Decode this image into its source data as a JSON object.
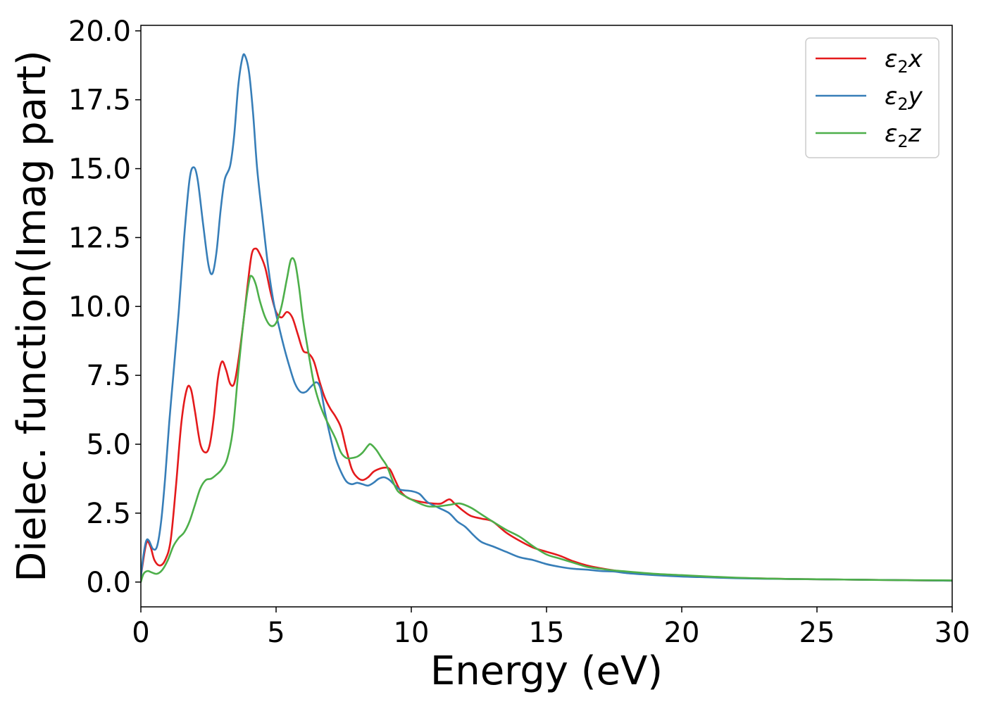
{
  "chart_data": {
    "type": "line",
    "xlabel": "Energy (eV)",
    "ylabel": "Dielec. function(Imag part)",
    "xlim": [
      0,
      30
    ],
    "ylim": [
      -0.9,
      20.2
    ],
    "xticks": [
      0,
      5,
      10,
      15,
      20,
      25,
      30
    ],
    "xtick_labels": [
      "0",
      "5",
      "10",
      "15",
      "20",
      "25",
      "30"
    ],
    "yticks": [
      0,
      2.5,
      5,
      7.5,
      10,
      12.5,
      15,
      17.5,
      20
    ],
    "ytick_labels": [
      "0.0",
      "2.5",
      "5.0",
      "7.5",
      "10.0",
      "12.5",
      "15.0",
      "17.5",
      "20.0"
    ],
    "grid": false,
    "legend_position": "top-right",
    "series": [
      {
        "name": "ε",
        "name_sub": "2",
        "name_suffix": "x",
        "color": "#e41a1c",
        "points": [
          [
            0,
            0.2
          ],
          [
            0.2,
            1.4
          ],
          [
            0.35,
            1.3
          ],
          [
            0.5,
            0.8
          ],
          [
            0.7,
            0.6
          ],
          [
            0.9,
            0.8
          ],
          [
            1.1,
            1.5
          ],
          [
            1.3,
            3.5
          ],
          [
            1.5,
            5.8
          ],
          [
            1.7,
            7.0
          ],
          [
            1.85,
            7.0
          ],
          [
            2.0,
            6.2
          ],
          [
            2.2,
            5.0
          ],
          [
            2.4,
            4.7
          ],
          [
            2.55,
            5.0
          ],
          [
            2.7,
            6.0
          ],
          [
            2.85,
            7.4
          ],
          [
            3.0,
            8.0
          ],
          [
            3.15,
            7.7
          ],
          [
            3.3,
            7.2
          ],
          [
            3.45,
            7.2
          ],
          [
            3.6,
            8.0
          ],
          [
            3.8,
            9.5
          ],
          [
            3.95,
            10.8
          ],
          [
            4.1,
            11.9
          ],
          [
            4.25,
            12.1
          ],
          [
            4.4,
            11.9
          ],
          [
            4.6,
            11.4
          ],
          [
            4.8,
            10.5
          ],
          [
            5.0,
            9.8
          ],
          [
            5.2,
            9.6
          ],
          [
            5.4,
            9.8
          ],
          [
            5.6,
            9.6
          ],
          [
            5.8,
            9.0
          ],
          [
            6.0,
            8.4
          ],
          [
            6.2,
            8.3
          ],
          [
            6.4,
            8.0
          ],
          [
            6.6,
            7.3
          ],
          [
            6.8,
            6.7
          ],
          [
            7.0,
            6.3
          ],
          [
            7.2,
            6.0
          ],
          [
            7.4,
            5.6
          ],
          [
            7.6,
            4.8
          ],
          [
            7.8,
            4.1
          ],
          [
            8.0,
            3.8
          ],
          [
            8.2,
            3.7
          ],
          [
            8.4,
            3.8
          ],
          [
            8.6,
            4.0
          ],
          [
            8.8,
            4.1
          ],
          [
            9.0,
            4.15
          ],
          [
            9.2,
            4.1
          ],
          [
            9.4,
            3.7
          ],
          [
            9.6,
            3.3
          ],
          [
            9.8,
            3.1
          ],
          [
            10.0,
            3.0
          ],
          [
            10.4,
            2.9
          ],
          [
            10.8,
            2.85
          ],
          [
            11.1,
            2.85
          ],
          [
            11.4,
            3.0
          ],
          [
            11.6,
            2.85
          ],
          [
            11.9,
            2.6
          ],
          [
            12.2,
            2.4
          ],
          [
            12.6,
            2.3
          ],
          [
            13.0,
            2.2
          ],
          [
            13.5,
            1.8
          ],
          [
            14.0,
            1.5
          ],
          [
            14.5,
            1.25
          ],
          [
            15.0,
            1.1
          ],
          [
            15.5,
            0.95
          ],
          [
            16.0,
            0.75
          ],
          [
            16.5,
            0.6
          ],
          [
            17.0,
            0.5
          ],
          [
            17.5,
            0.42
          ],
          [
            18.0,
            0.36
          ],
          [
            19.0,
            0.28
          ],
          [
            20.0,
            0.22
          ],
          [
            21.0,
            0.18
          ],
          [
            22.0,
            0.15
          ],
          [
            23.0,
            0.13
          ],
          [
            24.0,
            0.11
          ],
          [
            25.0,
            0.1
          ],
          [
            26.0,
            0.09
          ],
          [
            27.0,
            0.08
          ],
          [
            28.0,
            0.07
          ],
          [
            30.0,
            0.05
          ]
        ]
      },
      {
        "name": "ε",
        "name_sub": "2",
        "name_suffix": "y",
        "color": "#377eb8",
        "points": [
          [
            0,
            0.2
          ],
          [
            0.1,
            1.0
          ],
          [
            0.2,
            1.5
          ],
          [
            0.3,
            1.5
          ],
          [
            0.45,
            1.2
          ],
          [
            0.6,
            1.3
          ],
          [
            0.75,
            2.2
          ],
          [
            0.9,
            3.8
          ],
          [
            1.05,
            5.8
          ],
          [
            1.2,
            7.5
          ],
          [
            1.4,
            9.8
          ],
          [
            1.6,
            12.5
          ],
          [
            1.8,
            14.6
          ],
          [
            1.95,
            15.05
          ],
          [
            2.1,
            14.6
          ],
          [
            2.3,
            13.0
          ],
          [
            2.5,
            11.5
          ],
          [
            2.65,
            11.2
          ],
          [
            2.8,
            12.0
          ],
          [
            2.95,
            13.5
          ],
          [
            3.1,
            14.6
          ],
          [
            3.3,
            15.1
          ],
          [
            3.45,
            16.2
          ],
          [
            3.6,
            18.0
          ],
          [
            3.75,
            19.0
          ],
          [
            3.85,
            19.1
          ],
          [
            4.0,
            18.5
          ],
          [
            4.15,
            17.0
          ],
          [
            4.3,
            15.0
          ],
          [
            4.5,
            13.2
          ],
          [
            4.7,
            11.5
          ],
          [
            4.9,
            10.2
          ],
          [
            5.1,
            9.3
          ],
          [
            5.3,
            8.5
          ],
          [
            5.5,
            7.8
          ],
          [
            5.7,
            7.2
          ],
          [
            5.9,
            6.9
          ],
          [
            6.1,
            6.9
          ],
          [
            6.3,
            7.1
          ],
          [
            6.5,
            7.25
          ],
          [
            6.65,
            7.0
          ],
          [
            6.8,
            6.2
          ],
          [
            7.0,
            5.3
          ],
          [
            7.2,
            4.5
          ],
          [
            7.4,
            4.0
          ],
          [
            7.6,
            3.65
          ],
          [
            7.8,
            3.55
          ],
          [
            8.0,
            3.6
          ],
          [
            8.2,
            3.55
          ],
          [
            8.4,
            3.5
          ],
          [
            8.6,
            3.6
          ],
          [
            8.8,
            3.75
          ],
          [
            9.0,
            3.8
          ],
          [
            9.2,
            3.7
          ],
          [
            9.4,
            3.5
          ],
          [
            9.6,
            3.35
          ],
          [
            10.0,
            3.3
          ],
          [
            10.3,
            3.2
          ],
          [
            10.6,
            2.9
          ],
          [
            11.0,
            2.7
          ],
          [
            11.4,
            2.5
          ],
          [
            11.7,
            2.2
          ],
          [
            12.0,
            2.0
          ],
          [
            12.3,
            1.7
          ],
          [
            12.6,
            1.45
          ],
          [
            13.0,
            1.3
          ],
          [
            13.5,
            1.1
          ],
          [
            14.0,
            0.9
          ],
          [
            14.5,
            0.8
          ],
          [
            15.0,
            0.65
          ],
          [
            15.5,
            0.55
          ],
          [
            16.0,
            0.48
          ],
          [
            16.5,
            0.45
          ],
          [
            17.0,
            0.4
          ],
          [
            17.5,
            0.38
          ],
          [
            18.0,
            0.32
          ],
          [
            19.0,
            0.25
          ],
          [
            20.0,
            0.2
          ],
          [
            21.0,
            0.17
          ],
          [
            22.0,
            0.14
          ],
          [
            23.0,
            0.12
          ],
          [
            24.0,
            0.11
          ],
          [
            25.0,
            0.1
          ],
          [
            26.0,
            0.09
          ],
          [
            27.0,
            0.08
          ],
          [
            28.0,
            0.07
          ],
          [
            30.0,
            0.05
          ]
        ]
      },
      {
        "name": "ε",
        "name_sub": "2",
        "name_suffix": "z",
        "color": "#4daf4a",
        "points": [
          [
            0,
            0
          ],
          [
            0.1,
            0.3
          ],
          [
            0.25,
            0.4
          ],
          [
            0.4,
            0.35
          ],
          [
            0.6,
            0.3
          ],
          [
            0.8,
            0.45
          ],
          [
            1.0,
            0.8
          ],
          [
            1.2,
            1.3
          ],
          [
            1.4,
            1.6
          ],
          [
            1.6,
            1.8
          ],
          [
            1.8,
            2.2
          ],
          [
            2.0,
            2.8
          ],
          [
            2.2,
            3.4
          ],
          [
            2.4,
            3.7
          ],
          [
            2.6,
            3.75
          ],
          [
            2.8,
            3.9
          ],
          [
            3.0,
            4.1
          ],
          [
            3.2,
            4.5
          ],
          [
            3.4,
            5.5
          ],
          [
            3.6,
            7.6
          ],
          [
            3.8,
            9.5
          ],
          [
            4.0,
            10.9
          ],
          [
            4.1,
            11.1
          ],
          [
            4.25,
            10.8
          ],
          [
            4.4,
            10.2
          ],
          [
            4.6,
            9.6
          ],
          [
            4.8,
            9.3
          ],
          [
            5.0,
            9.4
          ],
          [
            5.2,
            10.0
          ],
          [
            5.4,
            11.0
          ],
          [
            5.55,
            11.7
          ],
          [
            5.7,
            11.6
          ],
          [
            5.85,
            10.7
          ],
          [
            6.0,
            9.5
          ],
          [
            6.2,
            8.3
          ],
          [
            6.4,
            7.2
          ],
          [
            6.6,
            6.5
          ],
          [
            6.8,
            6.0
          ],
          [
            7.0,
            5.6
          ],
          [
            7.2,
            5.2
          ],
          [
            7.4,
            4.7
          ],
          [
            7.6,
            4.5
          ],
          [
            7.8,
            4.5
          ],
          [
            8.0,
            4.55
          ],
          [
            8.2,
            4.7
          ],
          [
            8.4,
            4.95
          ],
          [
            8.5,
            5.0
          ],
          [
            8.7,
            4.8
          ],
          [
            8.9,
            4.5
          ],
          [
            9.1,
            4.2
          ],
          [
            9.3,
            3.7
          ],
          [
            9.5,
            3.3
          ],
          [
            9.8,
            3.1
          ],
          [
            10.2,
            2.9
          ],
          [
            10.6,
            2.75
          ],
          [
            11.0,
            2.75
          ],
          [
            11.4,
            2.8
          ],
          [
            11.8,
            2.85
          ],
          [
            12.2,
            2.7
          ],
          [
            12.6,
            2.45
          ],
          [
            13.0,
            2.2
          ],
          [
            13.5,
            1.9
          ],
          [
            14.0,
            1.65
          ],
          [
            14.5,
            1.3
          ],
          [
            15.0,
            1.0
          ],
          [
            15.5,
            0.85
          ],
          [
            16.0,
            0.7
          ],
          [
            16.5,
            0.55
          ],
          [
            17.0,
            0.48
          ],
          [
            17.5,
            0.42
          ],
          [
            18.0,
            0.38
          ],
          [
            19.0,
            0.3
          ],
          [
            20.0,
            0.25
          ],
          [
            21.0,
            0.2
          ],
          [
            22.0,
            0.16
          ],
          [
            23.0,
            0.13
          ],
          [
            24.0,
            0.11
          ],
          [
            25.0,
            0.1
          ],
          [
            26.0,
            0.09
          ],
          [
            27.0,
            0.08
          ],
          [
            28.0,
            0.07
          ],
          [
            30.0,
            0.06
          ]
        ]
      }
    ]
  }
}
